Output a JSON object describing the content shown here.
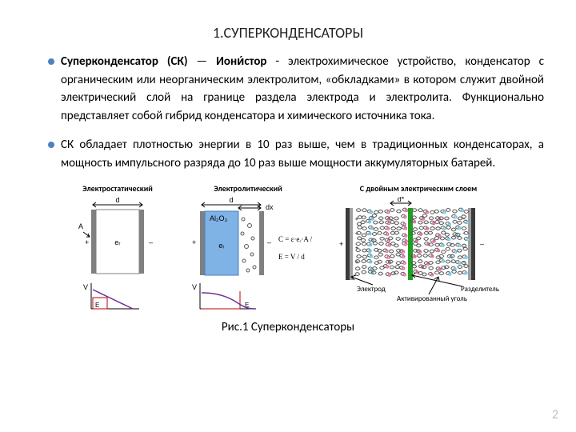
{
  "title": "1.СУПЕРКОНДЕНСАТОРЫ",
  "bullets": [
    {
      "html": "<span class='bold'>Суперконденсатор (СК)</span> — <span class='bold'>Иони́стор</span> - электрохимическое устройство, конденсатор с органическим или неорганическим электролитом, «обкладками» в котором служит двойной электрический слой на границе раздела электрода и электролита. Функционально представляет собой гибрид конденсатора и химического источника тока."
    },
    {
      "html": "СК обладает плотностью энергии в 10 раз выше, чем в традиционных конденсаторах, а мощность импульсного разряда до 10 раз выше мощности аккумуляторных батарей."
    }
  ],
  "diagram_titles": {
    "electro": "Электростатический",
    "electrolytic": "Электролитический",
    "edlc": "С двойным электрическим слоем"
  },
  "labels": {
    "electrode": "Электрод",
    "activated_carbon": "Активированный уголь",
    "separator": "Разделитель",
    "A": "A",
    "d": "d",
    "dx": "dx",
    "dstar": "d*",
    "er": "eᵣ",
    "al2o3": "Al₂O₃",
    "plus": "+",
    "minus": "–",
    "C_formula": "C = ε·eᵣ·A / d",
    "E_formula": "E = V / d",
    "V": "V",
    "E": "E"
  },
  "colors": {
    "accent_bullet": "#4f81bd",
    "plate": "#3b3b3b",
    "plate_light": "#808080",
    "electrolyte": "#7fb2e5",
    "separator": "#1fa01f",
    "curve_red": "#c00000",
    "curve_purple": "#70309a",
    "pos": "#d96b9b",
    "neg": "#6fc0d6",
    "anno": "#000000"
  },
  "caption": "Рис.1 Суперконденсаторы",
  "page": "2"
}
